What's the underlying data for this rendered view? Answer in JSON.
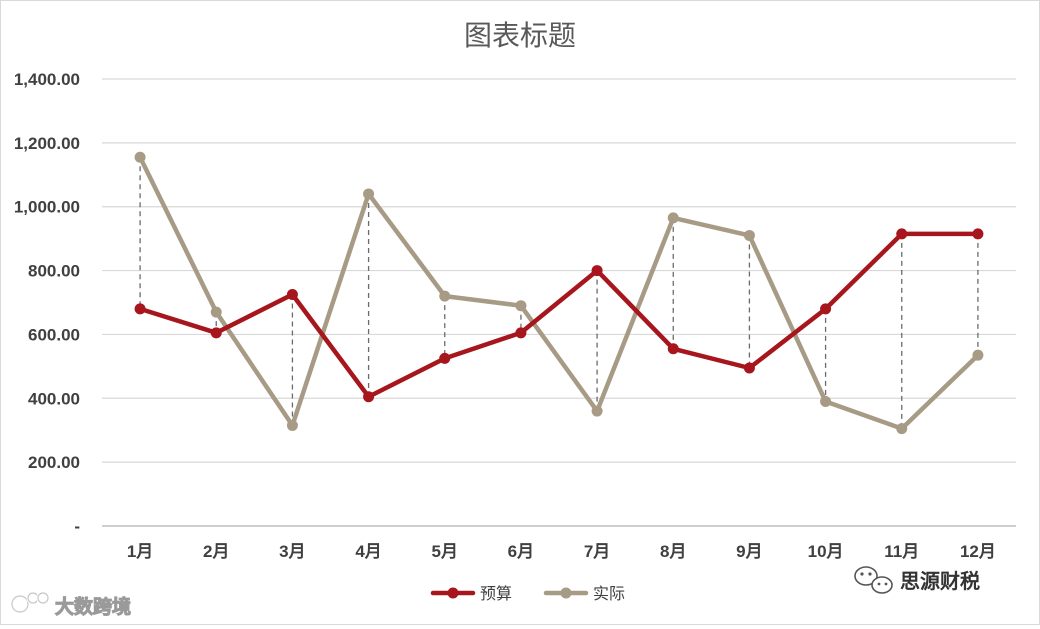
{
  "chart_data": {
    "type": "line",
    "title": "图表标题",
    "categories": [
      "1月",
      "2月",
      "3月",
      "4月",
      "5月",
      "6月",
      "7月",
      "8月",
      "9月",
      "10月",
      "11月",
      "12月"
    ],
    "series": [
      {
        "name": "预算",
        "color": "#A6161C",
        "values": [
          680,
          605,
          725,
          405,
          525,
          605,
          800,
          555,
          495,
          680,
          915,
          915
        ]
      },
      {
        "name": "实际",
        "color": "#A89B86",
        "values": [
          1155,
          670,
          315,
          1040,
          720,
          690,
          360,
          965,
          910,
          390,
          305,
          535
        ]
      }
    ],
    "ylim": [
      0,
      1400
    ],
    "y_ticks": [
      {
        "value": 0,
        "label": "-"
      },
      {
        "value": 200,
        "label": "200.00"
      },
      {
        "value": 400,
        "label": "400.00"
      },
      {
        "value": 600,
        "label": "600.00"
      },
      {
        "value": 800,
        "label": "800.00"
      },
      {
        "value": 1000,
        "label": "1,000.00"
      },
      {
        "value": 1200,
        "label": "1,200.00"
      },
      {
        "value": 1400,
        "label": "1,400.00"
      }
    ],
    "grid": true,
    "drop_lines": true,
    "legend_position": "bottom"
  },
  "watermarks": {
    "bottom_left": "大数跨境",
    "bottom_right": "思源财税"
  }
}
